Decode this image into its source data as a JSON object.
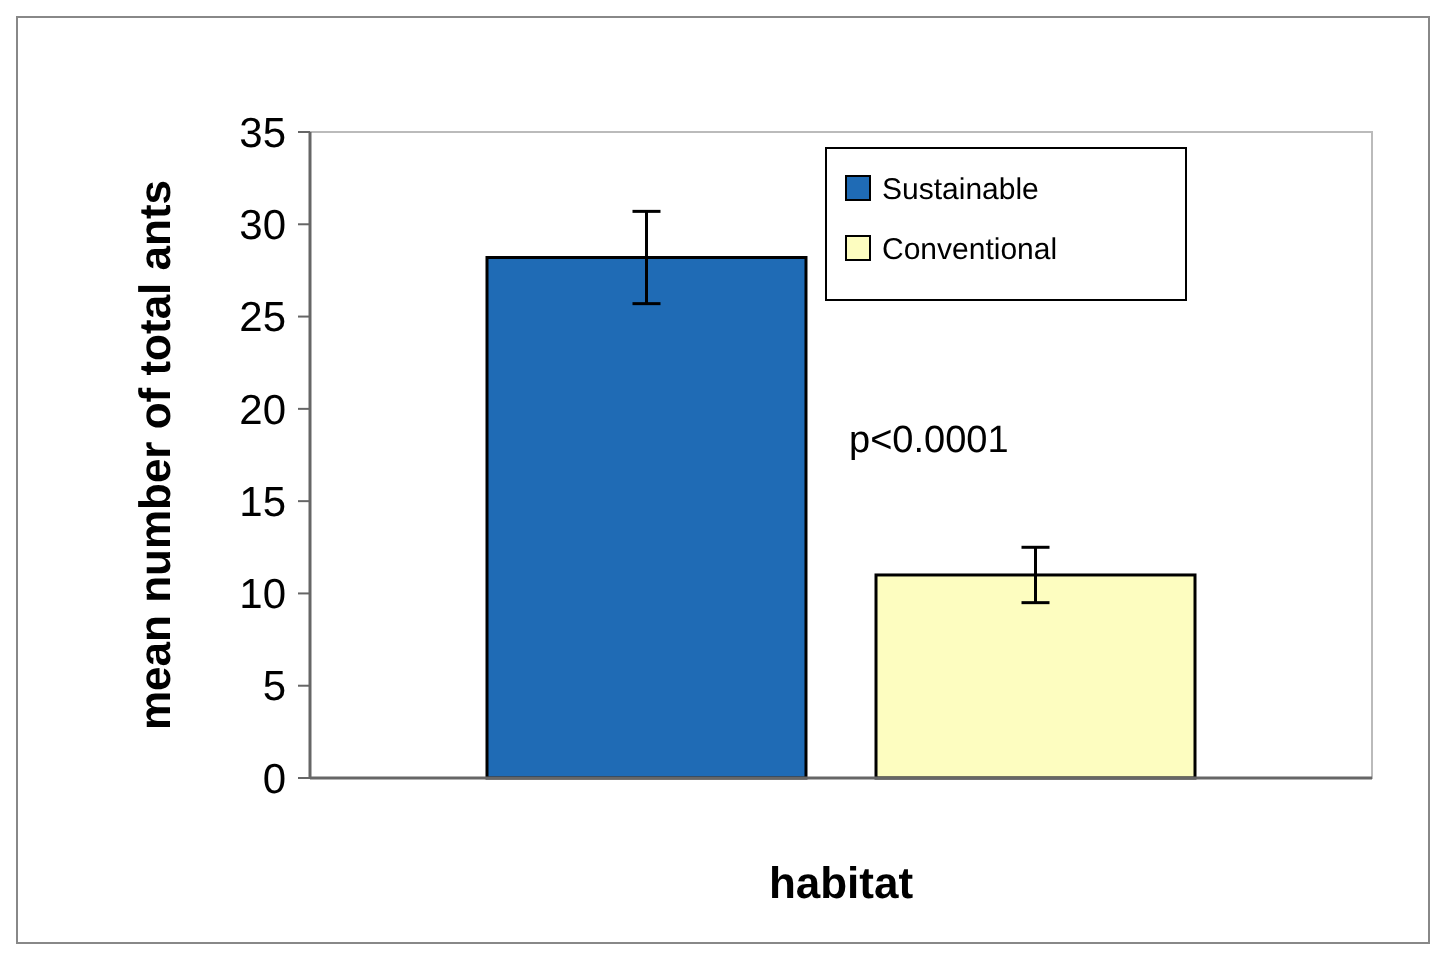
{
  "chart_data": {
    "type": "bar",
    "xlabel": "habitat",
    "ylabel": "mean number of total ants",
    "categories": [
      null
    ],
    "series": [
      {
        "name": "Sustainable",
        "color": "#1f6bb5",
        "values": [
          28.2
        ],
        "errors": [
          2.5
        ]
      },
      {
        "name": "Conventional",
        "color": "#fdfdc0",
        "values": [
          11
        ],
        "errors": [
          1.5
        ]
      }
    ],
    "ylim": [
      0,
      35
    ],
    "yticks": [
      0,
      5,
      10,
      15,
      20,
      25,
      30,
      35
    ],
    "grid": false,
    "legend": "top right",
    "annotations": [
      "p<0.0001"
    ]
  }
}
